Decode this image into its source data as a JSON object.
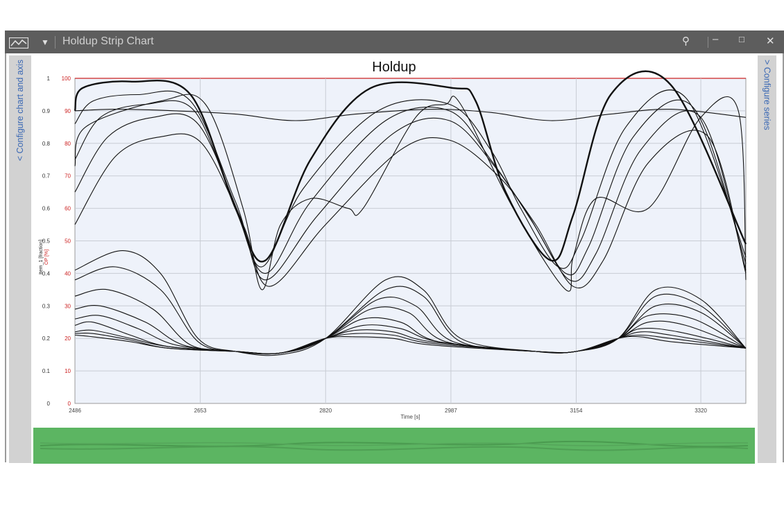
{
  "window": {
    "title": "Holdup Strip Chart",
    "controls": {
      "pin": "pin-icon",
      "minimize": "minimize-icon",
      "maximize": "maximize-icon",
      "close": "close-icon"
    }
  },
  "side_panels": {
    "left_label": "< Configure chart and axis",
    "right_label": "> Configure series"
  },
  "colors": {
    "line": "#111111",
    "plot_bg": "#eef2fa",
    "grid": "#c8ccd4",
    "secondary_axis": "#cc2222",
    "overview": "#5cb562",
    "titlebar": "#5d5d5d"
  },
  "chart_data": {
    "type": "line",
    "title": "Holdup",
    "xlabel": "Time [s]",
    "ylabel": "Item_1 [fraction]",
    "y2label": "OP [%]",
    "xlim": [
      2486,
      3380
    ],
    "ylim": [
      0,
      1
    ],
    "y2lim": [
      0,
      100
    ],
    "xticks": [
      2486,
      2653,
      2820,
      2987,
      3154,
      3320
    ],
    "yticks": [
      "0",
      "0.1",
      "0.2",
      "0.3",
      "0.4",
      "0.5",
      "0.6",
      "0.7",
      "0.8",
      "0.9",
      "1"
    ],
    "y2ticks": [
      "0",
      "10",
      "20",
      "30",
      "40",
      "50",
      "60",
      "70",
      "80",
      "90",
      "100"
    ],
    "grid": true,
    "legend": "none",
    "series": [
      {
        "x": [
          2486,
          2496,
          2560,
          2640,
          2700,
          2740,
          2800,
          2880,
          2990,
          3020,
          3060,
          3120,
          3150,
          3200,
          3280,
          3380
        ],
        "values": [
          0.9,
          0.97,
          0.99,
          0.95,
          0.6,
          0.44,
          0.75,
          0.97,
          0.97,
          0.93,
          0.65,
          0.44,
          0.58,
          0.95,
          0.98,
          0.49
        ]
      },
      {
        "x": [
          2486,
          2510,
          2570,
          2640,
          2700,
          2735,
          2790,
          2890,
          2985,
          3040,
          3080,
          3130,
          3160,
          3220,
          3300,
          3380
        ],
        "values": [
          0.86,
          0.93,
          0.95,
          0.93,
          0.62,
          0.42,
          0.66,
          0.9,
          0.92,
          0.78,
          0.6,
          0.42,
          0.5,
          0.85,
          0.94,
          0.45
        ]
      },
      {
        "x": [
          2486,
          2520,
          2580,
          2645,
          2700,
          2740,
          2800,
          2900,
          2985,
          3040,
          3090,
          3140,
          3170,
          3230,
          3310,
          3380
        ],
        "values": [
          0.75,
          0.88,
          0.92,
          0.9,
          0.6,
          0.4,
          0.62,
          0.87,
          0.9,
          0.75,
          0.58,
          0.4,
          0.48,
          0.82,
          0.91,
          0.43
        ]
      },
      {
        "x": [
          2486,
          2530,
          2590,
          2650,
          2705,
          2740,
          2810,
          2910,
          2985,
          3045,
          3095,
          3145,
          3180,
          3240,
          3320,
          3380
        ],
        "values": [
          0.65,
          0.82,
          0.88,
          0.86,
          0.58,
          0.38,
          0.58,
          0.83,
          0.87,
          0.73,
          0.56,
          0.38,
          0.46,
          0.78,
          0.88,
          0.41
        ]
      },
      {
        "x": [
          2486,
          2540,
          2600,
          2655,
          2710,
          2745,
          2820,
          2920,
          2985,
          3050,
          3100,
          3150,
          3190,
          3250,
          3330,
          3380
        ],
        "values": [
          0.55,
          0.76,
          0.82,
          0.8,
          0.55,
          0.36,
          0.55,
          0.78,
          0.81,
          0.7,
          0.55,
          0.36,
          0.44,
          0.74,
          0.82,
          0.4
        ]
      },
      {
        "x": [
          2486,
          2500,
          2600,
          2660,
          2710,
          2735,
          2760,
          2800,
          2850,
          2870,
          2940,
          2980,
          3000,
          3070,
          3140,
          3150,
          3180,
          3250,
          3320,
          3370,
          3380
        ],
        "values": [
          0.73,
          0.85,
          0.93,
          0.92,
          0.6,
          0.35,
          0.55,
          0.63,
          0.6,
          0.6,
          0.88,
          0.92,
          0.92,
          0.6,
          0.35,
          0.45,
          0.63,
          0.6,
          0.88,
          0.9,
          0.38
        ]
      },
      {
        "x": [
          2486,
          2540,
          2620,
          2700,
          2780,
          2860,
          2960,
          3040,
          3120,
          3200,
          3280,
          3380
        ],
        "values": [
          0.9,
          0.905,
          0.9,
          0.89,
          0.87,
          0.89,
          0.905,
          0.895,
          0.87,
          0.89,
          0.905,
          0.88
        ]
      },
      {
        "x": [
          2486,
          2550,
          2600,
          2650,
          2700,
          2760,
          2820,
          2900,
          2950,
          3000,
          3100,
          3154,
          3210,
          3260,
          3320,
          3380
        ],
        "values": [
          0.41,
          0.47,
          0.4,
          0.2,
          0.16,
          0.15,
          0.2,
          0.38,
          0.35,
          0.2,
          0.16,
          0.16,
          0.2,
          0.35,
          0.32,
          0.17
        ]
      },
      {
        "x": [
          2486,
          2540,
          2600,
          2650,
          2700,
          2760,
          2820,
          2900,
          2950,
          3000,
          3100,
          3154,
          3210,
          3260,
          3320,
          3380
        ],
        "values": [
          0.38,
          0.42,
          0.35,
          0.19,
          0.16,
          0.155,
          0.2,
          0.35,
          0.33,
          0.19,
          0.16,
          0.16,
          0.2,
          0.33,
          0.3,
          0.17
        ]
      },
      {
        "x": [
          2486,
          2530,
          2590,
          2640,
          2700,
          2760,
          2820,
          2890,
          2940,
          2990,
          3100,
          3154,
          3210,
          3260,
          3320,
          3380
        ],
        "values": [
          0.33,
          0.35,
          0.29,
          0.18,
          0.16,
          0.155,
          0.2,
          0.32,
          0.3,
          0.19,
          0.16,
          0.16,
          0.2,
          0.3,
          0.28,
          0.17
        ]
      },
      {
        "x": [
          2486,
          2520,
          2580,
          2630,
          2700,
          2760,
          2820,
          2880,
          2930,
          2980,
          3100,
          3154,
          3210,
          3250,
          3310,
          3380
        ],
        "values": [
          0.29,
          0.3,
          0.25,
          0.18,
          0.16,
          0.155,
          0.2,
          0.29,
          0.28,
          0.19,
          0.16,
          0.16,
          0.2,
          0.27,
          0.26,
          0.17
        ]
      },
      {
        "x": [
          2486,
          2520,
          2570,
          2620,
          2700,
          2760,
          2820,
          2870,
          2920,
          2970,
          3100,
          3154,
          3210,
          3250,
          3300,
          3380
        ],
        "values": [
          0.26,
          0.27,
          0.23,
          0.18,
          0.16,
          0.155,
          0.2,
          0.26,
          0.25,
          0.19,
          0.16,
          0.16,
          0.2,
          0.25,
          0.24,
          0.17
        ]
      },
      {
        "x": [
          2486,
          2510,
          2560,
          2610,
          2700,
          2760,
          2820,
          2870,
          2920,
          2970,
          3100,
          3154,
          3210,
          3240,
          3290,
          3380
        ],
        "values": [
          0.24,
          0.25,
          0.21,
          0.175,
          0.16,
          0.155,
          0.2,
          0.24,
          0.23,
          0.19,
          0.16,
          0.16,
          0.2,
          0.23,
          0.22,
          0.17
        ]
      },
      {
        "x": [
          2486,
          2510,
          2560,
          2610,
          2700,
          2760,
          2820,
          2860,
          2910,
          2960,
          3100,
          3154,
          3210,
          3240,
          3280,
          3380
        ],
        "values": [
          0.22,
          0.225,
          0.2,
          0.175,
          0.16,
          0.155,
          0.2,
          0.225,
          0.22,
          0.19,
          0.16,
          0.16,
          0.2,
          0.22,
          0.21,
          0.17
        ]
      },
      {
        "x": [
          2486,
          2510,
          2560,
          2610,
          2700,
          2760,
          2820,
          2860,
          2910,
          2960,
          3100,
          3154,
          3210,
          3240,
          3280,
          3380
        ],
        "values": [
          0.215,
          0.215,
          0.195,
          0.17,
          0.16,
          0.155,
          0.2,
          0.215,
          0.21,
          0.185,
          0.16,
          0.16,
          0.2,
          0.21,
          0.2,
          0.17
        ]
      },
      {
        "x": [
          2486,
          2510,
          2560,
          2610,
          2700,
          2760,
          2820,
          2860,
          2910,
          2960,
          3100,
          3154,
          3210,
          3240,
          3280,
          3380
        ],
        "values": [
          0.21,
          0.205,
          0.19,
          0.17,
          0.16,
          0.155,
          0.2,
          0.205,
          0.2,
          0.18,
          0.16,
          0.16,
          0.2,
          0.205,
          0.19,
          0.17
        ]
      }
    ]
  }
}
